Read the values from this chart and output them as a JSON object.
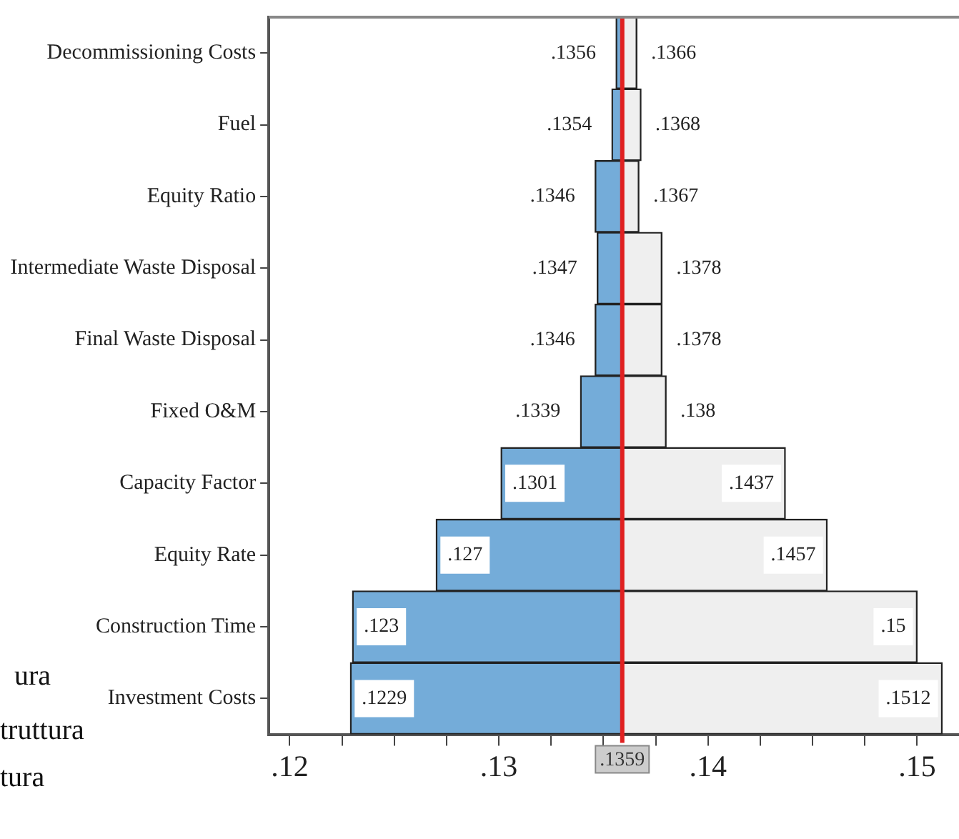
{
  "chart_data": {
    "type": "bar",
    "orientation": "horizontal",
    "categories": [
      "Decommissioning Costs",
      "Fuel",
      "Equity Ratio",
      "Intermediate Waste Disposal",
      "Final Waste Disposal",
      "Fixed O&M",
      "Capacity Factor",
      "Equity Rate",
      "Construction Time",
      "Investment Costs"
    ],
    "series": [
      {
        "color": "#74acd9",
        "base": [
          0.1359,
          0.1359,
          0.1359,
          0.1359,
          0.1359,
          0.1359,
          0.1359,
          0.1359,
          0.1359,
          0.1359
        ],
        "values": [
          -0.0003,
          -0.0005,
          -0.0013,
          -0.0012,
          -0.0013,
          -0.002,
          -0.0058,
          -0.0089,
          -0.0129,
          -0.013
        ],
        "value_labels": [
          ".1356",
          ".1354",
          ".1346",
          ".1347",
          ".1346",
          ".1339",
          ".1301",
          ".127",
          ".123",
          ".1229"
        ]
      },
      {
        "color": "#efefef",
        "base": [
          0.1359,
          0.1359,
          0.1359,
          0.1359,
          0.1359,
          0.1359,
          0.1359,
          0.1359,
          0.1359,
          0.1359
        ],
        "values": [
          0.0007,
          0.0009,
          0.0008,
          0.0019,
          0.0019,
          0.0021,
          0.0078,
          0.0098,
          0.0141,
          0.0153
        ],
        "value_labels": [
          ".1366",
          ".1368",
          ".1367",
          ".1378",
          ".1378",
          ".138",
          ".1437",
          ".1457",
          ".15",
          ".1512"
        ]
      }
    ],
    "xlim": [
      0.119,
      0.152
    ],
    "xticks": [
      {
        "value": 0.12,
        "label": ".12"
      },
      {
        "value": 0.1225,
        "label": null
      },
      {
        "value": 0.125,
        "label": null
      },
      {
        "value": 0.1275,
        "label": null
      },
      {
        "value": 0.13,
        "label": ".13"
      },
      {
        "value": 0.1325,
        "label": null
      },
      {
        "value": 0.135,
        "label": null
      },
      {
        "value": 0.1375,
        "label": null
      },
      {
        "value": 0.14,
        "label": ".14"
      },
      {
        "value": 0.1425,
        "label": null
      },
      {
        "value": 0.145,
        "label": null
      },
      {
        "value": 0.1475,
        "label": null
      },
      {
        "value": 0.15,
        "label": ".15"
      }
    ],
    "ref_lines": [
      {
        "axis": "x",
        "value": 0.1359,
        "label": ".1359",
        "color": "#e02020"
      }
    ],
    "annotations": [
      "ura",
      "truttura",
      "tura"
    ],
    "grid": false,
    "legend": false
  }
}
